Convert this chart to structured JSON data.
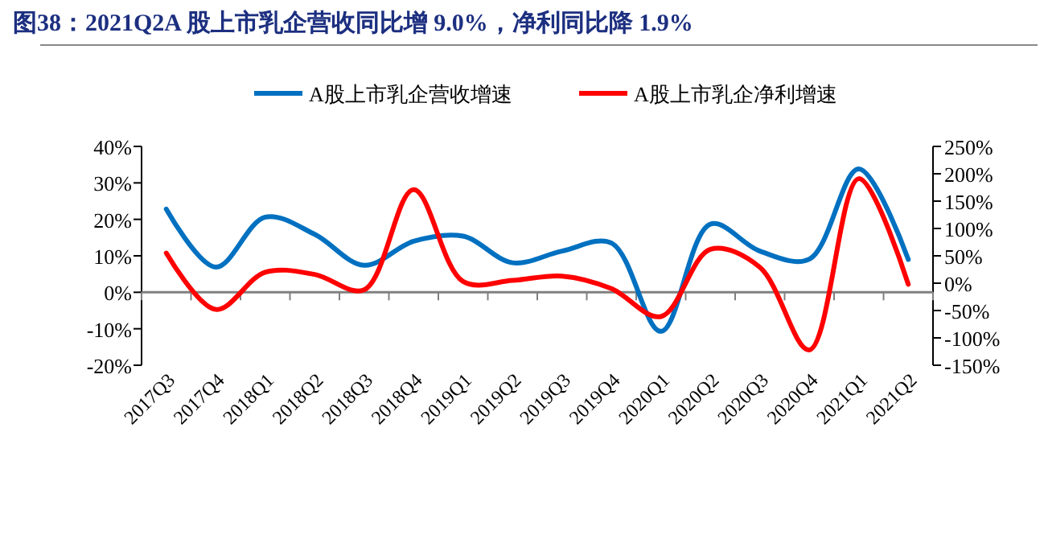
{
  "chart_data": {
    "type": "line",
    "title": "图38：2021Q2A 股上市乳企营收同比增 9.0%，净利同比降 1.9%",
    "categories": [
      "2017Q3",
      "2017Q4",
      "2018Q1",
      "2018Q2",
      "2018Q3",
      "2018Q4",
      "2019Q1",
      "2019Q2",
      "2019Q3",
      "2019Q4",
      "2020Q1",
      "2020Q2",
      "2020Q3",
      "2020Q4",
      "2021Q1",
      "2021Q2"
    ],
    "series": [
      {
        "name": "A股上市乳企营收增速",
        "color": "#0070c0",
        "values": [
          22.8,
          6.9,
          20.6,
          15.9,
          7.4,
          14,
          15.4,
          8.1,
          11.3,
          13.5,
          -10.7,
          18.7,
          11.3,
          9.1,
          33.8,
          9.0
        ]
      },
      {
        "name": "A股上市乳企净利增速",
        "color": "#ff0000",
        "axis": "y2",
        "values": [
          55,
          -48,
          20,
          16,
          -12,
          171,
          3,
          5,
          13,
          -10,
          -61,
          62,
          29,
          -122,
          191,
          -2
        ]
      }
    ],
    "ylim": [
      -20,
      40
    ],
    "yticks": [
      {
        "value": -20,
        "label": "-20%"
      },
      {
        "value": -10,
        "label": "-10%"
      },
      {
        "value": 0,
        "label": "0%"
      },
      {
        "value": 10,
        "label": "10%"
      },
      {
        "value": 20,
        "label": "20%"
      },
      {
        "value": 30,
        "label": "30%"
      },
      {
        "value": 40,
        "label": "40%"
      }
    ],
    "y2lim": [
      -150,
      250
    ],
    "y2ticks": [
      {
        "value": -150,
        "label": "-150%"
      },
      {
        "value": -100,
        "label": "-100%"
      },
      {
        "value": -50,
        "label": "-50%"
      },
      {
        "value": 0,
        "label": "0%"
      },
      {
        "value": 50,
        "label": "50%"
      },
      {
        "value": 100,
        "label": "100%"
      },
      {
        "value": 150,
        "label": "150%"
      },
      {
        "value": 200,
        "label": "200%"
      },
      {
        "value": 250,
        "label": "250%"
      }
    ],
    "legend": "top",
    "marker": "none",
    "line_style": "solid"
  }
}
